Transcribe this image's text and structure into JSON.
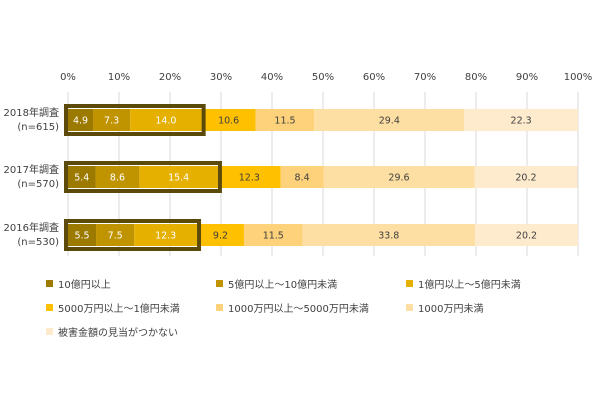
{
  "chart_data": {
    "type": "bar",
    "orientation": "horizontal",
    "stacked": "percent",
    "categories": [
      [
        "2018年調査",
        "(n=615)"
      ],
      [
        "2017年調査",
        "(n=570)"
      ],
      [
        "2016年調査",
        "(n=530)"
      ]
    ],
    "series": [
      {
        "name": "10億円以上",
        "color": "#9C7A00",
        "values": [
          4.9,
          5.4,
          5.5
        ]
      },
      {
        "name": "5億円以上～10億円未満",
        "color": "#C09400",
        "values": [
          7.3,
          8.6,
          7.5
        ]
      },
      {
        "name": "1億円以上～5億円未満",
        "color": "#E5B000",
        "values": [
          14.0,
          15.4,
          12.3
        ]
      },
      {
        "name": "5000万円以上～1億円未満",
        "color": "#FFC000",
        "values": [
          10.6,
          12.3,
          9.2
        ]
      },
      {
        "name": "1000万円以上～5000万円未満",
        "color": "#FDD27A",
        "values": [
          11.5,
          8.4,
          11.5
        ]
      },
      {
        "name": "1000万円未満",
        "color": "#FEDFA3",
        "values": [
          29.4,
          29.6,
          33.8
        ]
      },
      {
        "name": "被害金額の見当がつかない",
        "color": "#FEEBCE",
        "values": [
          22.3,
          20.2,
          20.2
        ]
      }
    ],
    "xaxis": {
      "min": 0,
      "max": 100,
      "ticks": [
        "0%",
        "10%",
        "20%",
        "30%",
        "40%",
        "50%",
        "60%",
        "70%",
        "80%",
        "90%",
        "100%"
      ],
      "position": "top"
    },
    "highlight": {
      "series_range": [
        0,
        2
      ],
      "color": "#5C4A0A"
    },
    "grid": true,
    "legend": "bottom",
    "title": "",
    "xlabel": "",
    "ylabel": ""
  }
}
